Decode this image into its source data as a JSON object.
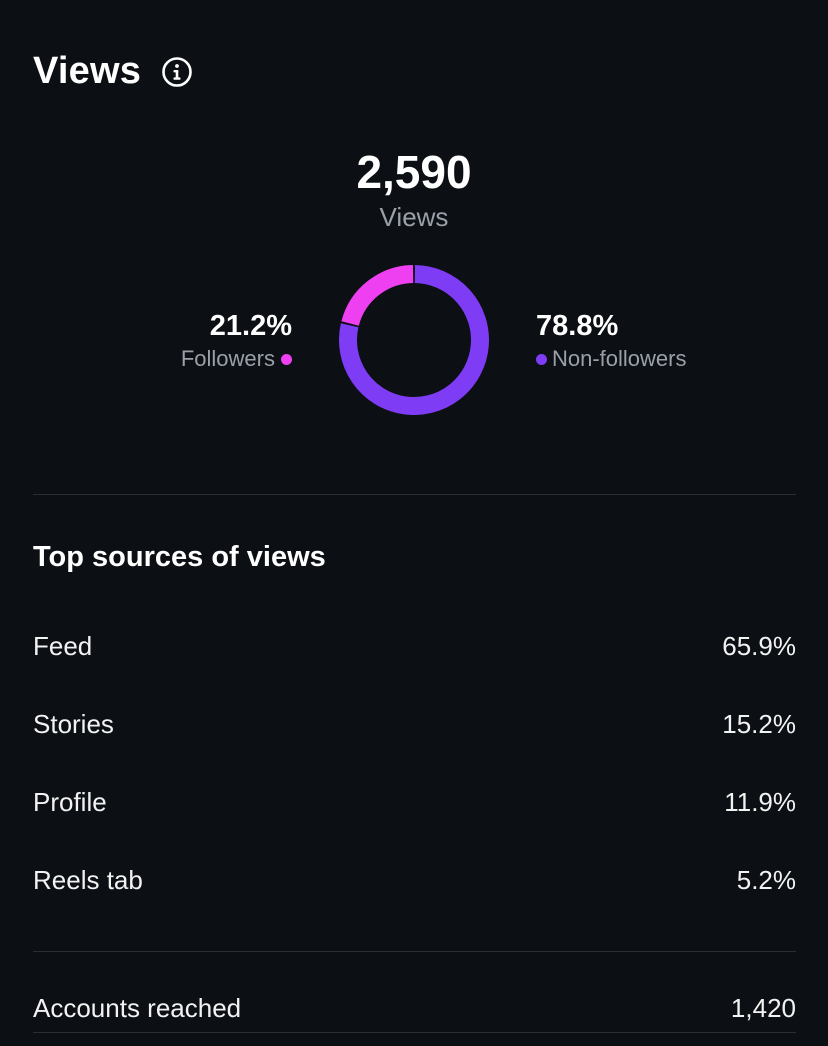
{
  "header": {
    "title": "Views",
    "info_icon": "info-icon"
  },
  "summary": {
    "total_value": "2,590",
    "total_label": "Views"
  },
  "audience": {
    "followers": {
      "percent": "21.2%",
      "label": "Followers",
      "share": 0.212,
      "color": "#ee3ff0"
    },
    "non_followers": {
      "percent": "78.8%",
      "label": "Non-followers",
      "share": 0.788,
      "color": "#7e3cf5"
    }
  },
  "sources": {
    "title": "Top sources of views",
    "rows": [
      {
        "label": "Feed",
        "value": "65.9%"
      },
      {
        "label": "Stories",
        "value": "15.2%"
      },
      {
        "label": "Profile",
        "value": "11.9%"
      },
      {
        "label": "Reels tab",
        "value": "5.2%"
      }
    ]
  },
  "accounts": {
    "label": "Accounts reached",
    "value": "1,420"
  },
  "colors": {
    "background": "#0c0f14",
    "muted_text": "#9aa0a8",
    "divider": "#2a2e35"
  }
}
